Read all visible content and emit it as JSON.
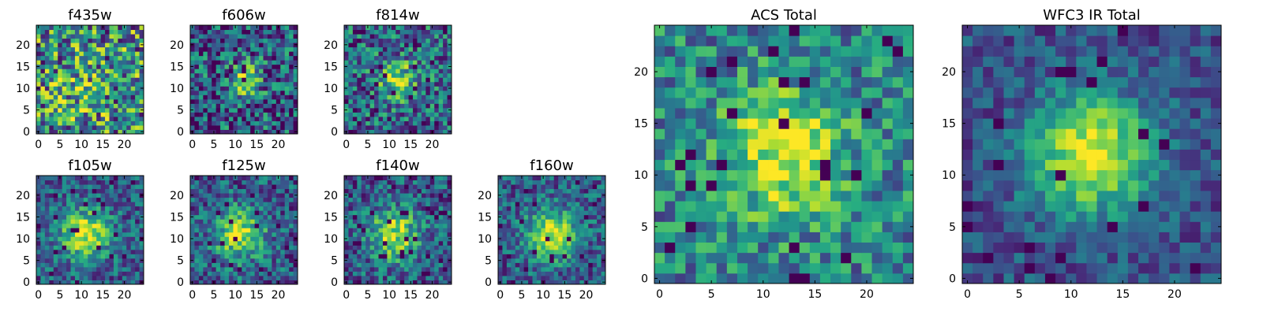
{
  "chart_data": [
    {
      "type": "heatmap",
      "title": "f435w",
      "colormap": "viridis",
      "grid_size": [
        25,
        25
      ],
      "seed": 11,
      "peak": [
        10,
        9
      ],
      "peak_strength": 0.15,
      "noise": 0.95,
      "sigma": 4,
      "tune": [
        0.5,
        0.3
      ],
      "xticks": [
        0,
        5,
        10,
        15,
        20
      ],
      "yticks": [
        0,
        5,
        10,
        15,
        20
      ],
      "xlim": [
        0,
        24
      ],
      "ylim": [
        0,
        24
      ]
    },
    {
      "type": "heatmap",
      "title": "f606w",
      "colormap": "viridis",
      "grid_size": [
        25,
        25
      ],
      "seed": 23,
      "peak": [
        12,
        12
      ],
      "peak_strength": 0.45,
      "noise": 0.75,
      "sigma": 3,
      "tune": [
        0.3,
        0.0
      ],
      "xticks": [
        0,
        5,
        10,
        15,
        20
      ],
      "yticks": [
        0,
        5,
        10,
        15,
        20
      ],
      "xlim": [
        0,
        24
      ],
      "ylim": [
        0,
        24
      ]
    },
    {
      "type": "heatmap",
      "title": "f814w",
      "colormap": "viridis",
      "grid_size": [
        25,
        25
      ],
      "seed": 37,
      "peak": [
        12,
        12
      ],
      "peak_strength": 0.5,
      "noise": 0.7,
      "sigma": 3,
      "tune": [
        0.35,
        0.0
      ],
      "xticks": [
        0,
        5,
        10,
        15,
        20
      ],
      "yticks": [
        0,
        5,
        10,
        15,
        20
      ],
      "xlim": [
        0,
        24
      ],
      "ylim": [
        0,
        24
      ]
    },
    {
      "type": "heatmap",
      "title": "f105w",
      "colormap": "viridis",
      "grid_size": [
        25,
        25
      ],
      "seed": 41,
      "peak": [
        11,
        11
      ],
      "peak_strength": 0.65,
      "noise": 0.5,
      "sigma": 4,
      "tune": [
        0.3,
        -0.1
      ],
      "xticks": [
        0,
        5,
        10,
        15,
        20
      ],
      "yticks": [
        0,
        5,
        10,
        15,
        20
      ],
      "xlim": [
        0,
        24
      ],
      "ylim": [
        0,
        24
      ]
    },
    {
      "type": "heatmap",
      "title": "f125w",
      "colormap": "viridis",
      "grid_size": [
        25,
        25
      ],
      "seed": 53,
      "peak": [
        11,
        11
      ],
      "peak_strength": 0.6,
      "noise": 0.55,
      "sigma": 4,
      "tune": [
        0.3,
        -0.1
      ],
      "xticks": [
        0,
        5,
        10,
        15,
        20
      ],
      "yticks": [
        0,
        5,
        10,
        15,
        20
      ],
      "xlim": [
        0,
        24
      ],
      "ylim": [
        0,
        24
      ]
    },
    {
      "type": "heatmap",
      "title": "f140w",
      "colormap": "viridis",
      "grid_size": [
        25,
        25
      ],
      "seed": 67,
      "peak": [
        11,
        11
      ],
      "peak_strength": 0.6,
      "noise": 0.55,
      "sigma": 4,
      "tune": [
        0.3,
        -0.1
      ],
      "xticks": [
        0,
        5,
        10,
        15,
        20
      ],
      "yticks": [
        0,
        5,
        10,
        15,
        20
      ],
      "xlim": [
        0,
        24
      ],
      "ylim": [
        0,
        24
      ]
    },
    {
      "type": "heatmap",
      "title": "f160w",
      "colormap": "viridis",
      "grid_size": [
        25,
        25
      ],
      "seed": 79,
      "peak": [
        12,
        11
      ],
      "peak_strength": 0.65,
      "noise": 0.5,
      "sigma": 4,
      "tune": [
        0.3,
        -0.1
      ],
      "xticks": [
        0,
        5,
        10,
        15,
        20
      ],
      "yticks": [
        0,
        5,
        10,
        15,
        20
      ],
      "xlim": [
        0,
        24
      ],
      "ylim": [
        0,
        24
      ]
    },
    {
      "type": "heatmap",
      "title": "ACS Total",
      "colormap": "viridis",
      "grid_size": [
        25,
        25
      ],
      "seed": 97,
      "peak": [
        12,
        12
      ],
      "peak_strength": 0.55,
      "noise": 0.55,
      "sigma": 4,
      "tune": [
        0.45,
        0.0
      ],
      "xticks": [
        0,
        5,
        10,
        15,
        20
      ],
      "yticks": [
        0,
        5,
        10,
        15,
        20
      ],
      "xlim": [
        0,
        24
      ],
      "ylim": [
        0,
        24
      ]
    },
    {
      "type": "heatmap",
      "title": "WFC3 IR Total",
      "colormap": "viridis",
      "grid_size": [
        25,
        25
      ],
      "seed": 113,
      "peak": [
        12,
        12
      ],
      "peak_strength": 0.75,
      "noise": 0.35,
      "sigma": 4,
      "tune": [
        0.25,
        -0.1
      ],
      "xticks": [
        0,
        5,
        10,
        15,
        20
      ],
      "yticks": [
        0,
        5,
        10,
        15,
        20
      ],
      "xlim": [
        0,
        24
      ],
      "ylim": [
        0,
        24
      ]
    }
  ]
}
